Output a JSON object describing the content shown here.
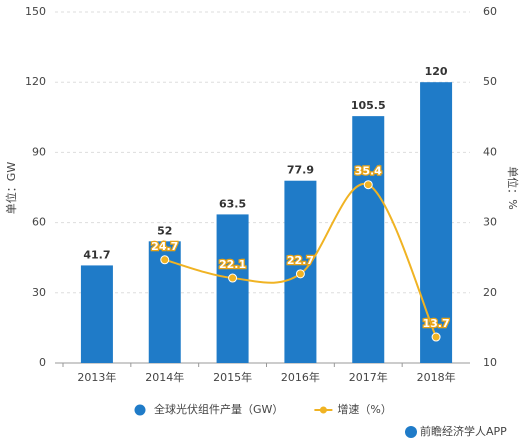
{
  "chart_data": {
    "type": "bar_line",
    "categories": [
      "2013年",
      "2014年",
      "2015年",
      "2016年",
      "2017年",
      "2018年"
    ],
    "series": [
      {
        "name": "全球光伏组件产量（GW）",
        "type": "bar",
        "color": "#1f7bc8",
        "values": [
          41.7,
          52,
          63.5,
          77.9,
          105.5,
          120
        ]
      },
      {
        "name": "增速（%）",
        "type": "line",
        "axis": "y2",
        "color": "#f0b323",
        "values": [
          null,
          24.7,
          22.1,
          22.7,
          35.4,
          13.7
        ]
      }
    ],
    "ylabel": "单位：GW",
    "y2label": "单位：%",
    "ylim": [
      0,
      150
    ],
    "yticks": [
      0,
      30,
      60,
      90,
      120,
      150
    ],
    "y2lim": [
      10,
      60
    ],
    "y2ticks": [
      10,
      20,
      30,
      40,
      50,
      60
    ],
    "grid": true,
    "legend": "bottom"
  },
  "footer": "前瞻经济学人APP"
}
